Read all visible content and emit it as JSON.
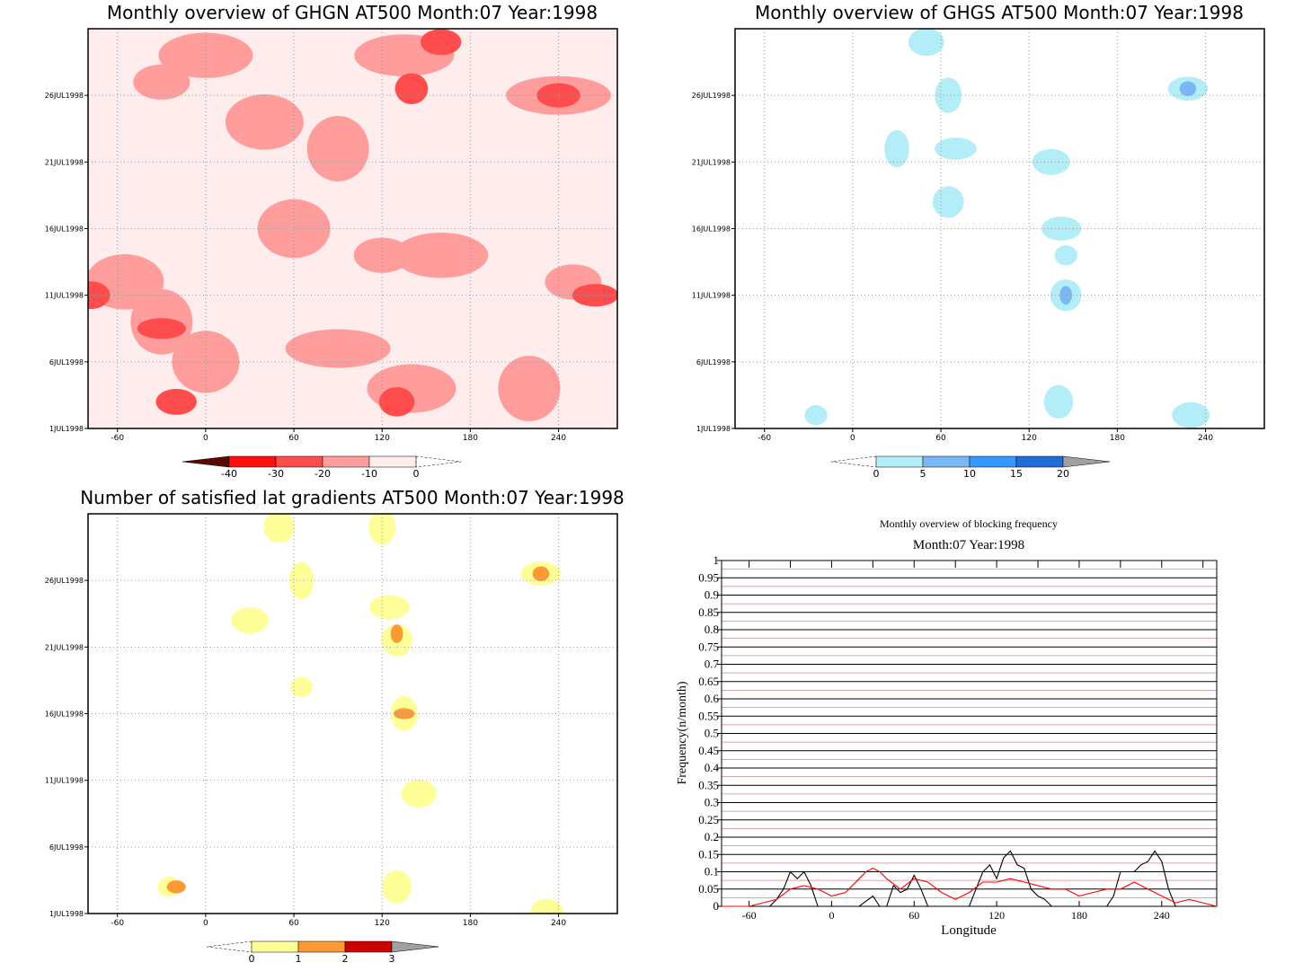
{
  "chart_data": [
    {
      "type": "heatmap",
      "title": "Monthly overview of GHGN AT500 Month:07 Year:1998",
      "x_ticks": [
        "-60",
        "0",
        "60",
        "120",
        "180",
        "240"
      ],
      "y_ticks": [
        "1JUL1998",
        "6JUL1998",
        "11JUL1998",
        "16JUL1998",
        "21JUL1998",
        "26JUL1998"
      ],
      "xlim": [
        -80,
        280
      ],
      "colorbar": {
        "labels": [
          "-40",
          "-30",
          "-20",
          "-10",
          "0"
        ],
        "colors": [
          "#5a0a00",
          "#ff1010",
          "#ff4d4d",
          "#ff9c9c",
          "#ffecec"
        ]
      },
      "colors": {
        "c1": "#ffecec",
        "c2": "#ff9c9c",
        "c3": "#ff4d4d"
      },
      "blobs": [
        {
          "x": -30,
          "y": 27,
          "level": 2
        },
        {
          "x": 0,
          "y": 29,
          "level": 2
        },
        {
          "x": 40,
          "y": 24,
          "level": 2
        },
        {
          "x": 90,
          "y": 22,
          "level": 2
        },
        {
          "x": 135,
          "y": 29,
          "level": 2
        },
        {
          "x": 160,
          "y": 30,
          "level": 3
        },
        {
          "x": 140,
          "y": 26.5,
          "level": 3
        },
        {
          "x": 240,
          "y": 26,
          "level": 2
        },
        {
          "x": 240,
          "y": 26,
          "level": 3
        },
        {
          "x": 60,
          "y": 16,
          "level": 2
        },
        {
          "x": 120,
          "y": 14,
          "level": 2
        },
        {
          "x": 160,
          "y": 14,
          "level": 2
        },
        {
          "x": -55,
          "y": 12,
          "level": 2
        },
        {
          "x": -30,
          "y": 9,
          "level": 2
        },
        {
          "x": -30,
          "y": 8.5,
          "level": 3
        },
        {
          "x": -20,
          "y": 3,
          "level": 3
        },
        {
          "x": 0,
          "y": 6,
          "level": 2
        },
        {
          "x": 90,
          "y": 7,
          "level": 2
        },
        {
          "x": 140,
          "y": 4,
          "level": 2
        },
        {
          "x": 130,
          "y": 3,
          "level": 3
        },
        {
          "x": 250,
          "y": 12,
          "level": 2
        },
        {
          "x": 265,
          "y": 11,
          "level": 3
        },
        {
          "x": -78,
          "y": 11,
          "level": 3
        },
        {
          "x": 220,
          "y": 4,
          "level": 2
        }
      ]
    },
    {
      "type": "heatmap",
      "title": "Monthly overview of GHGS AT500 Month:07 Year:1998",
      "x_ticks": [
        "-60",
        "0",
        "60",
        "120",
        "180",
        "240"
      ],
      "y_ticks": [
        "1JUL1998",
        "6JUL1998",
        "11JUL1998",
        "16JUL1998",
        "21JUL1998",
        "26JUL1998"
      ],
      "xlim": [
        -80,
        280
      ],
      "colorbar": {
        "labels": [
          "0",
          "5",
          "10",
          "15",
          "20"
        ],
        "colors": [
          "#b3eef8",
          "#7ab8f5",
          "#3399ff",
          "#1e6cd6",
          "#a0a0a0"
        ]
      },
      "colors": {
        "c1": "#b3eef8",
        "c2": "#7ab8f5"
      },
      "blobs": [
        {
          "x": -25,
          "y": 2,
          "level": 1
        },
        {
          "x": 135,
          "y": 21,
          "level": 1
        },
        {
          "x": 145,
          "y": 11,
          "level": 1
        },
        {
          "x": 145,
          "y": 11,
          "level": 2
        },
        {
          "x": 228,
          "y": 26.5,
          "level": 1
        },
        {
          "x": 228,
          "y": 26.5,
          "level": 2
        },
        {
          "x": 65,
          "y": 26,
          "level": 1
        },
        {
          "x": 70,
          "y": 22,
          "level": 1
        },
        {
          "x": 50,
          "y": 30,
          "level": 1
        },
        {
          "x": 140,
          "y": 3,
          "level": 1
        },
        {
          "x": 145,
          "y": 14,
          "level": 1
        },
        {
          "x": 230,
          "y": 2,
          "level": 1
        },
        {
          "x": 65,
          "y": 18,
          "level": 1
        },
        {
          "x": 30,
          "y": 22,
          "level": 1
        },
        {
          "x": 142,
          "y": 16,
          "level": 1
        }
      ]
    },
    {
      "type": "heatmap",
      "title": "Number of satisfied lat gradients AT500 Month:07 Year:1998",
      "x_ticks": [
        "-60",
        "0",
        "60",
        "120",
        "180",
        "240"
      ],
      "y_ticks": [
        "1JUL1998",
        "6JUL1998",
        "11JUL1998",
        "16JUL1998",
        "21JUL1998",
        "26JUL1998"
      ],
      "xlim": [
        -80,
        280
      ],
      "colorbar": {
        "labels": [
          "0",
          "1",
          "2",
          "3"
        ],
        "colors": [
          "#ffff99",
          "#ff9933",
          "#cc0000",
          "#a0a0a0"
        ]
      },
      "colors": {
        "c1": "#ffff99",
        "c2": "#ff9933"
      },
      "blobs": [
        {
          "x": -25,
          "y": 3,
          "level": 1
        },
        {
          "x": -20,
          "y": 3,
          "level": 2
        },
        {
          "x": 130,
          "y": 21.5,
          "level": 1
        },
        {
          "x": 130,
          "y": 22,
          "level": 2
        },
        {
          "x": 228,
          "y": 26.5,
          "level": 1
        },
        {
          "x": 228,
          "y": 26.5,
          "level": 2
        },
        {
          "x": 135,
          "y": 16,
          "level": 1
        },
        {
          "x": 135,
          "y": 16,
          "level": 2
        },
        {
          "x": 145,
          "y": 10,
          "level": 1
        },
        {
          "x": 130,
          "y": 3,
          "level": 1
        },
        {
          "x": 65,
          "y": 18,
          "level": 1
        },
        {
          "x": 30,
          "y": 23,
          "level": 1
        },
        {
          "x": 50,
          "y": 30,
          "level": 1
        },
        {
          "x": 65,
          "y": 26,
          "level": 1
        },
        {
          "x": 125,
          "y": 24,
          "level": 1
        },
        {
          "x": 232,
          "y": 1,
          "level": 1
        },
        {
          "x": 120,
          "y": 30,
          "level": 1
        }
      ]
    },
    {
      "type": "line",
      "title": "Monthly overview of blocking frequency",
      "subtitle": "Month:07 Year:1998",
      "xlabel": "Longitude",
      "ylabel": "Frequency(n/month)",
      "x_ticks": [
        "-60",
        "0",
        "60",
        "120",
        "180",
        "240"
      ],
      "y_ticks": [
        "0",
        "0.05",
        "0.1",
        "0.15",
        "0.2",
        "0.25",
        "0.3",
        "0.35",
        "0.4",
        "0.45",
        "0.5",
        "0.55",
        "0.6",
        "0.65",
        "0.7",
        "0.75",
        "0.8",
        "0.85",
        "0.9",
        "0.95",
        "1"
      ],
      "xlim": [
        -80,
        280
      ],
      "ylim": [
        0,
        1
      ],
      "series": [
        {
          "color": "#000000",
          "x": [
            -80,
            -45,
            -40,
            -35,
            -30,
            -25,
            -20,
            -15,
            -10,
            0,
            5,
            10,
            15,
            20,
            30,
            35,
            40,
            45,
            50,
            55,
            60,
            65,
            70,
            75,
            80,
            100,
            110,
            115,
            120,
            125,
            130,
            135,
            140,
            145,
            150,
            155,
            160,
            170,
            190,
            200,
            205,
            210,
            220,
            225,
            230,
            235,
            240,
            245,
            250,
            280
          ],
          "y": [
            0,
            0,
            0.02,
            0.05,
            0.1,
            0.08,
            0.1,
            0.06,
            0,
            0,
            0,
            0,
            0,
            0,
            0.03,
            0,
            0,
            0.06,
            0.04,
            0.05,
            0.09,
            0.05,
            0,
            0,
            0,
            0,
            0.1,
            0.12,
            0.08,
            0.14,
            0.16,
            0.12,
            0.11,
            0.05,
            0.03,
            0.02,
            0,
            0,
            0,
            0,
            0.03,
            0.1,
            0.1,
            0.12,
            0.13,
            0.16,
            0.13,
            0.05,
            0,
            0
          ]
        },
        {
          "color": "#ff0000",
          "x": [
            -80,
            -60,
            -50,
            -40,
            -30,
            -20,
            -10,
            0,
            10,
            20,
            25,
            30,
            35,
            40,
            50,
            60,
            70,
            80,
            90,
            100,
            110,
            120,
            130,
            140,
            150,
            160,
            170,
            180,
            190,
            200,
            210,
            220,
            230,
            240,
            250,
            260,
            270,
            280
          ],
          "y": [
            0,
            0,
            0.01,
            0.02,
            0.05,
            0.06,
            0.05,
            0.03,
            0.04,
            0.08,
            0.1,
            0.11,
            0.1,
            0.08,
            0.05,
            0.08,
            0.07,
            0.04,
            0.02,
            0.04,
            0.07,
            0.07,
            0.08,
            0.07,
            0.06,
            0.05,
            0.05,
            0.03,
            0.04,
            0.05,
            0.05,
            0.07,
            0.05,
            0.03,
            0.01,
            0.02,
            0.01,
            0
          ]
        }
      ]
    }
  ]
}
